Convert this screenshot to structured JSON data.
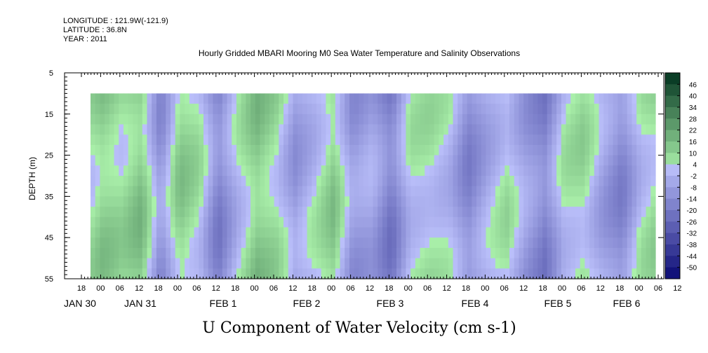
{
  "meta": {
    "longitude": "LONGITUDE : 121.9W(-121.9)",
    "latitude": "LATITUDE : 36.8N",
    "year": "YEAR : 2011"
  },
  "chart_data": {
    "type": "heatmap",
    "title": "Hourly Gridded MBARI Mooring M0 Sea Water Temperature and Salinity Observations",
    "xlabel": "U Component of Water Velocity (cm s-1)",
    "ylabel": "DEPTH (m)",
    "ylim": [
      5,
      55
    ],
    "y_ticks": [
      5,
      15,
      25,
      35,
      45,
      55
    ],
    "y_inverted": true,
    "hour_ticks": [
      "18",
      "00",
      "06",
      "12",
      "18",
      "00",
      "06",
      "12",
      "18",
      "00",
      "06",
      "12",
      "18",
      "00",
      "06",
      "12",
      "18",
      "00",
      "06",
      "12",
      "18",
      "00",
      "06",
      "12",
      "18",
      "00",
      "06",
      "12",
      "18",
      "00",
      "06",
      "12"
    ],
    "date_labels": [
      "JAN 30",
      "JAN 31",
      "FEB  1",
      "FEB  2",
      "FEB  3",
      "FEB  4",
      "FEB  5",
      "FEB  6"
    ],
    "data_depth_range": [
      10,
      55
    ],
    "colorbar": {
      "levels": [
        "46",
        "40",
        "34",
        "28",
        "22",
        "16",
        "10",
        "4",
        "-2",
        "-8",
        "-14",
        "-20",
        "-26",
        "-32",
        "-38",
        "-44",
        "-50"
      ],
      "range": [
        -50,
        50
      ]
    },
    "band_pattern": [
      {
        "hour": 0,
        "value": 4
      },
      {
        "hour": 6,
        "value": 12
      },
      {
        "hour": 12,
        "value": 8
      },
      {
        "hour": 18,
        "value": 14
      },
      {
        "hour": 24,
        "value": -10
      },
      {
        "hour": 30,
        "value": 12
      },
      {
        "hour": 36,
        "value": 6
      },
      {
        "hour": 42,
        "value": -14
      },
      {
        "hour": 48,
        "value": 2
      },
      {
        "hour": 54,
        "value": 14
      },
      {
        "hour": 60,
        "value": 8
      },
      {
        "hour": 66,
        "value": -6
      },
      {
        "hour": 72,
        "value": 2
      },
      {
        "hour": 78,
        "value": 12
      },
      {
        "hour": 84,
        "value": -8
      },
      {
        "hour": 90,
        "value": -4
      },
      {
        "hour": 96,
        "value": -16
      },
      {
        "hour": 102,
        "value": 4
      },
      {
        "hour": 108,
        "value": 6
      },
      {
        "hour": 114,
        "value": 2
      },
      {
        "hour": 120,
        "value": -12
      },
      {
        "hour": 126,
        "value": -2
      },
      {
        "hour": 132,
        "value": 6
      },
      {
        "hour": 138,
        "value": -6
      },
      {
        "hour": 144,
        "value": -14
      },
      {
        "hour": 150,
        "value": 4
      },
      {
        "hour": 156,
        "value": 8
      },
      {
        "hour": 162,
        "value": -4
      },
      {
        "hour": 168,
        "value": -12
      },
      {
        "hour": 174,
        "value": 4
      },
      {
        "hour": 180,
        "value": 10
      }
    ]
  }
}
